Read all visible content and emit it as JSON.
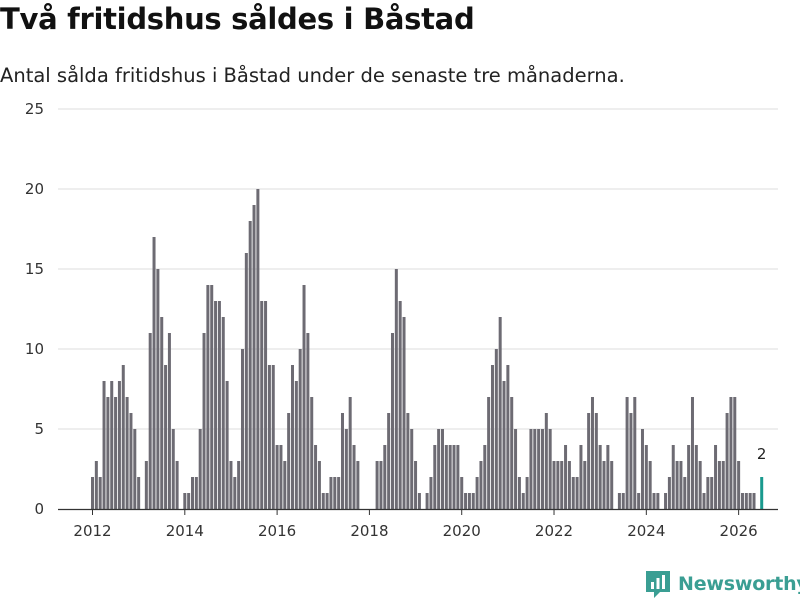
{
  "header": {
    "title": "Två fritidshus såldes i Båstad",
    "subtitle": "Antal sålda fritidshus i Båstad under de senaste tre månaderna."
  },
  "brand": {
    "name": "Newsworthy",
    "icon": "newsworthy-logo-icon",
    "color": "#3a9e93"
  },
  "chart_data": {
    "type": "bar",
    "title": "Två fritidshus såldes i Båstad",
    "subtitle": "Antal sålda fritidshus i Båstad under de senaste tre månaderna.",
    "xlabel": "",
    "ylabel": "",
    "ylim": [
      0,
      25
    ],
    "yticks": [
      "0",
      "5",
      "10",
      "15",
      "20",
      "25"
    ],
    "xticks": [
      "2012",
      "2014",
      "2016",
      "2018",
      "2020",
      "2022",
      "2024",
      "2026"
    ],
    "grid": true,
    "series_color": "#6d6b73",
    "highlight_color": "#1a9a8e",
    "start": "2012-01",
    "values": [
      2,
      3,
      2,
      8,
      7,
      8,
      7,
      8,
      9,
      7,
      6,
      5,
      2,
      0,
      3,
      11,
      17,
      15,
      12,
      9,
      11,
      5,
      3,
      0,
      1,
      1,
      2,
      2,
      5,
      11,
      14,
      14,
      13,
      13,
      12,
      8,
      3,
      2,
      3,
      10,
      16,
      18,
      19,
      20,
      13,
      13,
      9,
      9,
      4,
      4,
      3,
      6,
      9,
      8,
      10,
      14,
      11,
      7,
      4,
      3,
      1,
      1,
      2,
      2,
      2,
      6,
      5,
      7,
      4,
      3,
      0,
      0,
      0,
      0,
      3,
      3,
      4,
      6,
      11,
      15,
      13,
      12,
      6,
      5,
      3,
      1,
      0,
      1,
      2,
      4,
      5,
      5,
      4,
      4,
      4,
      4,
      2,
      1,
      1,
      1,
      2,
      3,
      4,
      7,
      9,
      10,
      12,
      8,
      9,
      7,
      5,
      2,
      1,
      2,
      5,
      5,
      5,
      5,
      6,
      5,
      3,
      3,
      3,
      4,
      3,
      2,
      2,
      4,
      3,
      6,
      7,
      6,
      4,
      3,
      4,
      3,
      0,
      1,
      1,
      7,
      6,
      7,
      1,
      5,
      4,
      3,
      1,
      1,
      0,
      1,
      2,
      4,
      3,
      3,
      2,
      4,
      7,
      4,
      3,
      1,
      2,
      2,
      4,
      3,
      3,
      6,
      7,
      7,
      3,
      1,
      1,
      1,
      1,
      0,
      2
    ],
    "highlight_last": true,
    "annotations": [
      {
        "label": "2",
        "value": 2,
        "at": "last"
      }
    ]
  }
}
